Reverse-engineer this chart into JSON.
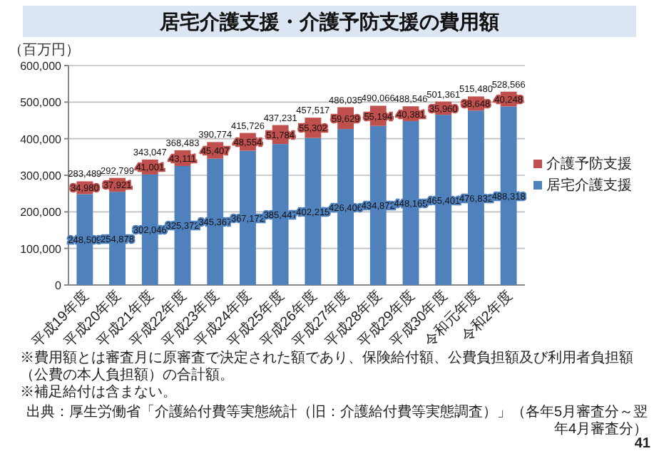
{
  "chart_data": {
    "type": "bar",
    "title": "居宅介護支援・介護予防支援の費用額",
    "ylabel": "（百万円）",
    "categories": [
      "平成19年度",
      "平成20年度",
      "平成21年度",
      "平成22年度",
      "平成23年度",
      "平成24年度",
      "平成25年度",
      "平成26年度",
      "平成27年度",
      "平成28年度",
      "平成29年度",
      "平成30年度",
      "令和元年度",
      "令和2年度"
    ],
    "stacked": true,
    "series": [
      {
        "name": "居宅介護支援",
        "color": "#4f81bd",
        "values": [
          248509,
          254878,
          302046,
          325372,
          345367,
          367172,
          385447,
          402215,
          426406,
          434872,
          448165,
          465401,
          476832,
          488318
        ],
        "value_labels": [
          "248,509",
          "254,878",
          "302,046",
          "325,372",
          "345,367",
          "367,172",
          "385,447",
          "402,215",
          "426,406",
          "434,872",
          "448,165",
          "465,401",
          "476,832",
          "488,318"
        ]
      },
      {
        "name": "介護予防支援",
        "color": "#c0504d",
        "values": [
          34980,
          37921,
          41001,
          43111,
          45407,
          48554,
          51784,
          55302,
          59629,
          55194,
          40381,
          35960,
          38648,
          40248
        ],
        "value_labels": [
          "34,980",
          "37,921",
          "41,001",
          "43,111",
          "45,407",
          "48,554",
          "51,784",
          "55,302",
          "59,629",
          "55,194",
          "40,381",
          "35,960",
          "38,648",
          "40,248"
        ]
      }
    ],
    "totals": [
      "283,489",
      "292,799",
      "343,047",
      "368,483",
      "390,774",
      "415,726",
      "437,231",
      "457,517",
      "486,035",
      "490,066",
      "488,546",
      "501,361",
      "515,480",
      "528,566"
    ],
    "ylim": [
      0,
      600000
    ],
    "yticks": [
      {
        "value": 0,
        "label": "0"
      },
      {
        "value": 100000,
        "label": "100,000"
      },
      {
        "value": 200000,
        "label": "200,000"
      },
      {
        "value": 300000,
        "label": "300,000"
      },
      {
        "value": 400000,
        "label": "400,000"
      },
      {
        "value": 500000,
        "label": "500,000"
      },
      {
        "value": 600000,
        "label": "600,000"
      }
    ],
    "grid": "y",
    "legend": "right",
    "annotations": [
      "※費用額とは審査月に原審査で決定された額であり、保険給付額、公費負担額及び利用者負担額（公費の本人負担額）の合計額。",
      "※補足給付は含まない。",
      "出典：厚生労働省「介護給付費等実態統計（旧：介護給付費等実態調査）」（各年5月審査分～翌年4月審査分）",
      "41"
    ]
  }
}
